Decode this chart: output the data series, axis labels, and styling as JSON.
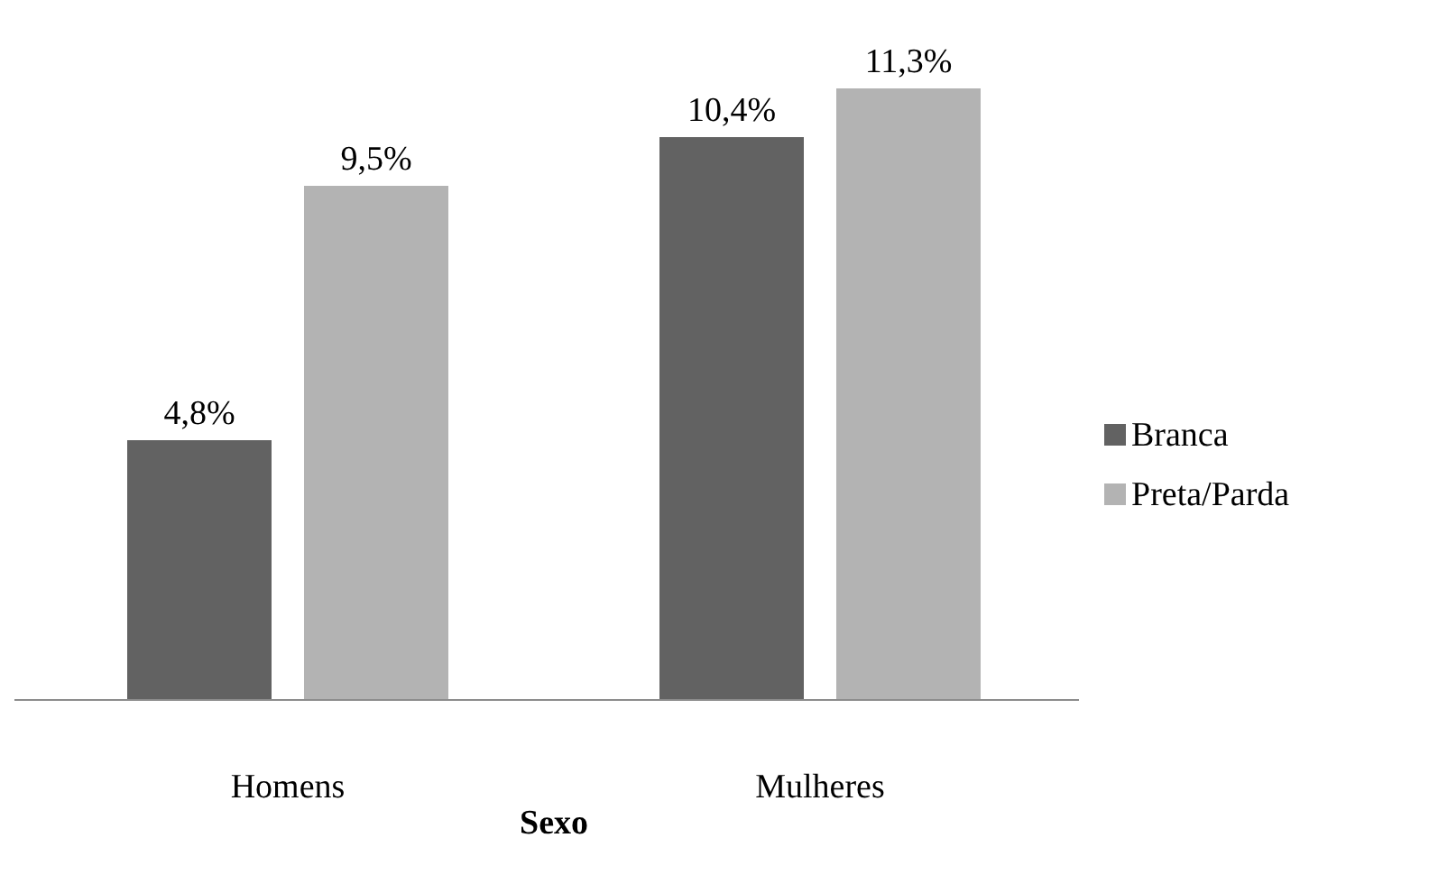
{
  "chart_data": {
    "type": "bar",
    "xlabel": "Sexo",
    "categories": [
      "Homens",
      "Mulheres"
    ],
    "legend": "right",
    "tick_labels": "x",
    "series": [
      {
        "name": "Branca",
        "color": "#626262",
        "values": [
          4.8,
          10.4
        ],
        "value_labels": [
          "4,8%",
          "10,4%"
        ]
      },
      {
        "name": "Preta/Parda",
        "color": "#b3b3b3",
        "values": [
          9.5,
          11.3
        ],
        "value_labels": [
          "9,5%",
          "11,3%"
        ]
      }
    ]
  }
}
